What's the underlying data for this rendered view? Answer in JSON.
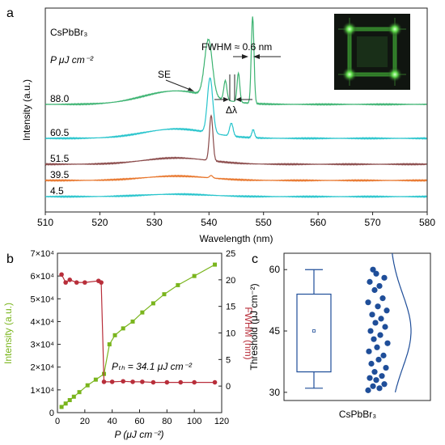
{
  "panels": {
    "a": "a",
    "b": "b",
    "c": "c"
  },
  "colors": {
    "teal": "#27c4cc",
    "green": "#3cb371",
    "brown": "#8a4a4a",
    "orange": "#e8762c",
    "lime": "#7ab51d",
    "red": "#b82e3a",
    "navy": "#1f4e99",
    "inset_bg": "#101510",
    "inset_glow": "#5fdc4a"
  },
  "chart_data": [
    {
      "id": "a",
      "type": "line",
      "sample_label": "CsPbBr₃",
      "power_label": "P μJ cm⁻²",
      "xlabel": "Wavelength (nm)",
      "ylabel": "Intensity (a.u.)",
      "xlim": [
        510,
        580
      ],
      "xticks": [
        "510",
        "520",
        "530",
        "540",
        "550",
        "560",
        "570",
        "580"
      ],
      "annotations": {
        "fwhm": "FWHM ≈ 0.6 nm",
        "se": "SE",
        "delta": "Δλ"
      },
      "inset": "green four-corner emission image",
      "series": [
        {
          "name": "4.5",
          "color": "teal",
          "offset": 0,
          "peaks": []
        },
        {
          "name": "39.5",
          "color": "orange",
          "offset": 1,
          "peaks": [
            [
              540.4,
              0.15,
              0.4
            ]
          ]
        },
        {
          "name": "51.5",
          "color": "brown",
          "offset": 2,
          "peaks": [
            [
              540.4,
              2.8,
              0.45
            ]
          ]
        },
        {
          "name": "60.5",
          "color": "teal",
          "offset": 3.6,
          "peaks": [
            [
              540.2,
              3.4,
              0.7
            ],
            [
              544.1,
              0.8,
              0.45
            ],
            [
              548.1,
              0.5,
              0.35
            ]
          ]
        },
        {
          "name": "88.0",
          "color": "green",
          "offset": 5.7,
          "peaks": [
            [
              539.9,
              3.5,
              1.0
            ],
            [
              543.0,
              1.2,
              0.4
            ],
            [
              545.4,
              1.8,
              0.35
            ],
            [
              548.0,
              5.4,
              0.35
            ]
          ]
        }
      ]
    },
    {
      "id": "b",
      "type": "line",
      "xlabel": "P (μJ cm⁻²)",
      "ylabel_left": "Intensity (a.u.)",
      "ylabel_right": "FWHM (nm)",
      "xlim": [
        0,
        120
      ],
      "ylim_left": [
        0,
        70000
      ],
      "ylim_right": [
        -5,
        25
      ],
      "xticks": [
        "0",
        "20",
        "40",
        "60",
        "80",
        "100",
        "120"
      ],
      "yticks_left": [
        "0",
        "1×10⁴",
        "2×10⁴",
        "3×10⁴",
        "4×10⁴",
        "5×10⁴",
        "6×10⁴",
        "7×10⁴"
      ],
      "yticks_right": [
        "0",
        "5",
        "10",
        "15",
        "20",
        "25"
      ],
      "threshold_label": "Pₜₕ = 34.1 μJ cm⁻²",
      "intensity": {
        "x": [
          3,
          6,
          9,
          12,
          16,
          22,
          28,
          34,
          38,
          42,
          48,
          55,
          62,
          70,
          78,
          88,
          100,
          115
        ],
        "y": [
          2500,
          4000,
          5500,
          7000,
          9000,
          12000,
          14500,
          17000,
          30000,
          34000,
          37000,
          40000,
          44000,
          48000,
          52000,
          56000,
          60000,
          65000
        ]
      },
      "fwhm": {
        "x": [
          3,
          6,
          9,
          14,
          20,
          30,
          32,
          34,
          40,
          48,
          55,
          62,
          70,
          80,
          90,
          100,
          115
        ],
        "y": [
          21,
          19.5,
          20,
          19.5,
          19.5,
          19.8,
          19.5,
          0.8,
          0.8,
          0.9,
          0.8,
          0.8,
          0.7,
          0.7,
          0.7,
          0.7,
          0.7
        ]
      }
    },
    {
      "id": "c",
      "type": "scatter",
      "ylabel": "Threshold (μJ cm⁻²)",
      "xlabel": "CsPbBr₃",
      "ylim": [
        28,
        64
      ],
      "yticks": [
        "30",
        "45",
        "60"
      ],
      "box": {
        "whisker_low": 31,
        "q1": 35,
        "mean": 45,
        "q3": 54,
        "whisker_high": 60
      },
      "points": [
        30.5,
        31,
        31.5,
        32,
        33,
        33.5,
        34,
        35,
        36,
        37,
        38,
        39,
        40,
        41,
        42,
        43,
        44,
        45,
        46,
        47,
        48,
        49,
        50,
        51,
        52,
        53,
        55,
        56,
        57,
        58,
        59,
        60
      ]
    }
  ]
}
